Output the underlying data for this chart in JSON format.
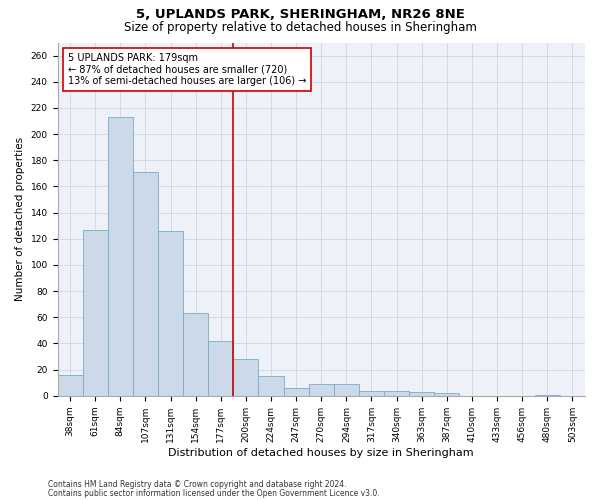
{
  "title1": "5, UPLANDS PARK, SHERINGHAM, NR26 8NE",
  "title2": "Size of property relative to detached houses in Sheringham",
  "xlabel": "Distribution of detached houses by size in Sheringham",
  "ylabel": "Number of detached properties",
  "categories": [
    "38sqm",
    "61sqm",
    "84sqm",
    "107sqm",
    "131sqm",
    "154sqm",
    "177sqm",
    "200sqm",
    "224sqm",
    "247sqm",
    "270sqm",
    "294sqm",
    "317sqm",
    "340sqm",
    "363sqm",
    "387sqm",
    "410sqm",
    "433sqm",
    "456sqm",
    "480sqm",
    "503sqm"
  ],
  "values": [
    16,
    127,
    213,
    171,
    126,
    63,
    42,
    28,
    15,
    6,
    9,
    9,
    4,
    4,
    3,
    2,
    0,
    0,
    0,
    1,
    0
  ],
  "bar_color": "#ccd9e8",
  "bar_edge_color": "#7aaac8",
  "vline_x_idx": 6.5,
  "vline_color": "#cc0000",
  "annotation_text": "5 UPLANDS PARK: 179sqm\n← 87% of detached houses are smaller (720)\n13% of semi-detached houses are larger (106) →",
  "annotation_box_color": "#ffffff",
  "annotation_box_edge": "#cc0000",
  "ylim": [
    0,
    270
  ],
  "yticks": [
    0,
    20,
    40,
    60,
    80,
    100,
    120,
    140,
    160,
    180,
    200,
    220,
    240,
    260
  ],
  "footer1": "Contains HM Land Registry data © Crown copyright and database right 2024.",
  "footer2": "Contains public sector information licensed under the Open Government Licence v3.0.",
  "bg_color": "#eef2f8",
  "title_fontsize": 9.5,
  "subtitle_fontsize": 8.5,
  "tick_fontsize": 6.5,
  "ylabel_fontsize": 7.5,
  "xlabel_fontsize": 8,
  "annot_fontsize": 7,
  "footer_fontsize": 5.5
}
